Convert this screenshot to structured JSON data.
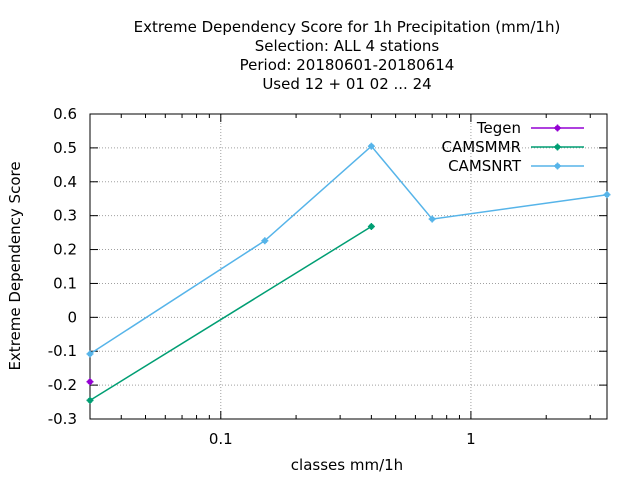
{
  "chart_data": {
    "type": "line",
    "title_lines": [
      "Extreme Dependency Score  for 1h Precipitation (mm/1h)",
      "Selection: ALL      4 stations",
      "Period: 20180601-20180614",
      "Used  12 + 01 02 ... 24"
    ],
    "xlabel": "classes mm/1h",
    "ylabel": "Extreme Dependency Score",
    "xscale": "log",
    "xlim": [
      0.03,
      3.5
    ],
    "ylim": [
      -0.3,
      0.6
    ],
    "y_ticks": [
      "0.6",
      "0.5",
      "0.4",
      "0.3",
      "0.2",
      "0.1",
      "0",
      "-0.1",
      "-0.2",
      "-0.3"
    ],
    "x_tick_labels": [
      "0.1",
      "1"
    ],
    "grid": true,
    "legend_position": "top-right",
    "series": [
      {
        "name": "Tegen",
        "color": "#9400d3",
        "points": [
          [
            0.03,
            -0.19
          ]
        ]
      },
      {
        "name": "CAMSMMR",
        "color": "#009e73",
        "points": [
          [
            0.03,
            -0.245
          ],
          [
            0.4,
            0.268
          ]
        ]
      },
      {
        "name": "CAMSNRT",
        "color": "#56b4e9",
        "points": [
          [
            0.03,
            -0.108
          ],
          [
            0.15,
            0.226
          ],
          [
            0.4,
            0.505
          ],
          [
            0.7,
            0.29
          ],
          [
            3.5,
            0.362
          ]
        ]
      }
    ]
  }
}
